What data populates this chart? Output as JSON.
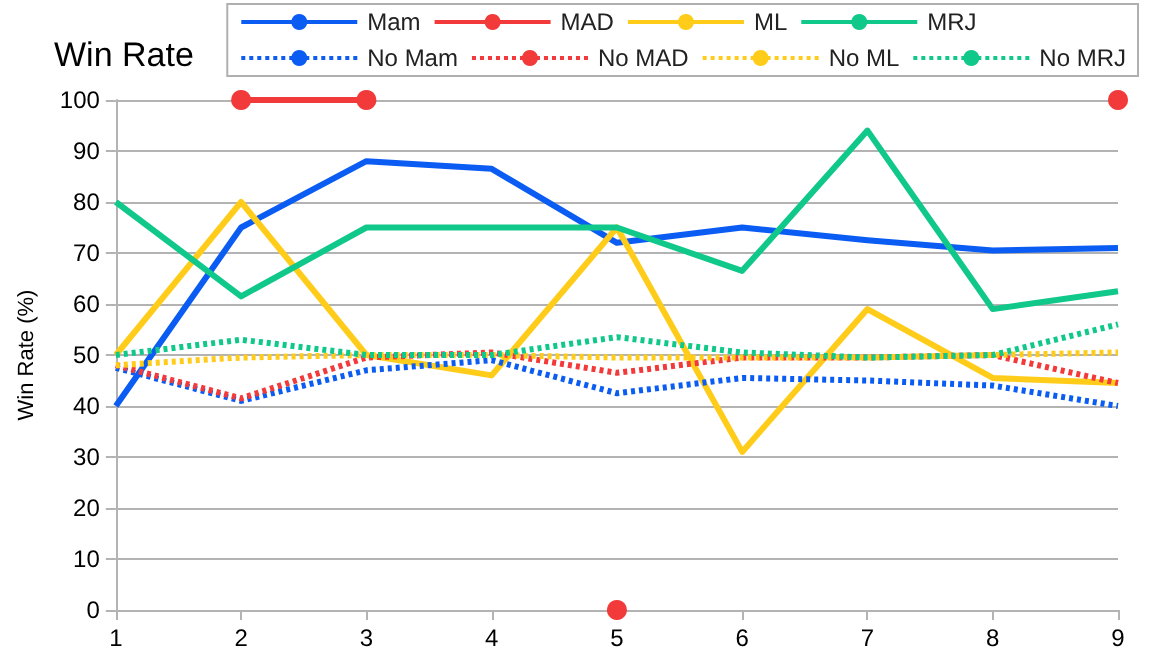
{
  "chart_data": {
    "type": "line",
    "title": "Win Rate",
    "ylabel": "Win Rate (%)",
    "x": [
      1,
      2,
      3,
      4,
      5,
      6,
      7,
      8,
      9
    ],
    "xlim": [
      1,
      9
    ],
    "xticks": [
      1,
      2,
      3,
      4,
      5,
      6,
      7,
      8,
      9
    ],
    "ylim": [
      0,
      100
    ],
    "yticks": [
      0,
      10,
      20,
      30,
      40,
      50,
      60,
      70,
      80,
      90,
      100
    ],
    "grid": "y",
    "legend": "top right",
    "marker": "none",
    "line_style": "solid",
    "series": [
      {
        "name": "Mam",
        "color": "#0a5cf2",
        "values": [
          40,
          75,
          88,
          86.5,
          72,
          75,
          72.5,
          70.5,
          71
        ]
      },
      {
        "name": "MAD",
        "color": "#f23a3a",
        "marker": "circle",
        "values": [
          null,
          100,
          100,
          null,
          0,
          null,
          null,
          null,
          100
        ]
      },
      {
        "name": "ML",
        "color": "#ffcc19",
        "values": [
          50,
          80,
          50,
          46,
          75,
          31,
          59,
          45.5,
          44.5
        ]
      },
      {
        "name": "MRJ",
        "color": "#10c88a",
        "values": [
          80,
          61.5,
          75,
          75,
          75,
          66.5,
          94,
          59,
          62.5
        ]
      },
      {
        "name": "No Mam",
        "color": "#0a5cf2",
        "line_style": "dotted",
        "values": [
          47.5,
          41,
          47,
          49,
          42.5,
          45.5,
          45,
          44,
          40
        ]
      },
      {
        "name": "No MAD",
        "color": "#f23a3a",
        "line_style": "dotted",
        "values": [
          48,
          41.5,
          49.5,
          50.5,
          46.5,
          49.5,
          49.5,
          50,
          44.5
        ]
      },
      {
        "name": "No ML",
        "color": "#ffcc19",
        "line_style": "dotted",
        "values": [
          48,
          49.5,
          50,
          50,
          49.5,
          49.5,
          49.5,
          50,
          50.5
        ]
      },
      {
        "name": "No MRJ",
        "color": "#10c88a",
        "line_style": "dotted",
        "values": [
          50,
          53,
          50,
          50,
          53.5,
          50.5,
          49.5,
          50,
          56
        ]
      }
    ]
  }
}
